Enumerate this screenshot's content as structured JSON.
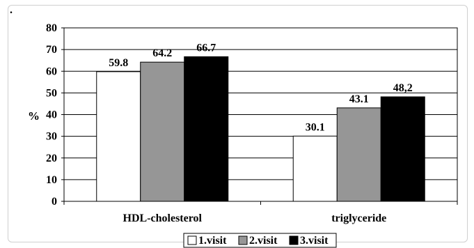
{
  "chart_data": {
    "type": "bar",
    "ylabel": "%",
    "xlabel": "",
    "title": "",
    "corner_mark": ".",
    "ylim": [
      0,
      80
    ],
    "yticks": [
      0,
      10,
      20,
      30,
      40,
      50,
      60,
      70,
      80
    ],
    "grid": true,
    "legend_position": "bottom",
    "categories": [
      "HDL-cholesterol",
      "triglyceride"
    ],
    "series": [
      {
        "name": "1.visit",
        "color": "#ffffff",
        "values": [
          59.8,
          30.1
        ],
        "labels": [
          "59.8",
          "30.1"
        ]
      },
      {
        "name": "2.visit",
        "color": "#969696",
        "values": [
          64.2,
          43.1
        ],
        "labels": [
          "64.2",
          "43.1"
        ]
      },
      {
        "name": "3.visit",
        "color": "#000000",
        "values": [
          66.7,
          48.2
        ],
        "labels": [
          "66.7",
          "48,2"
        ]
      }
    ]
  }
}
